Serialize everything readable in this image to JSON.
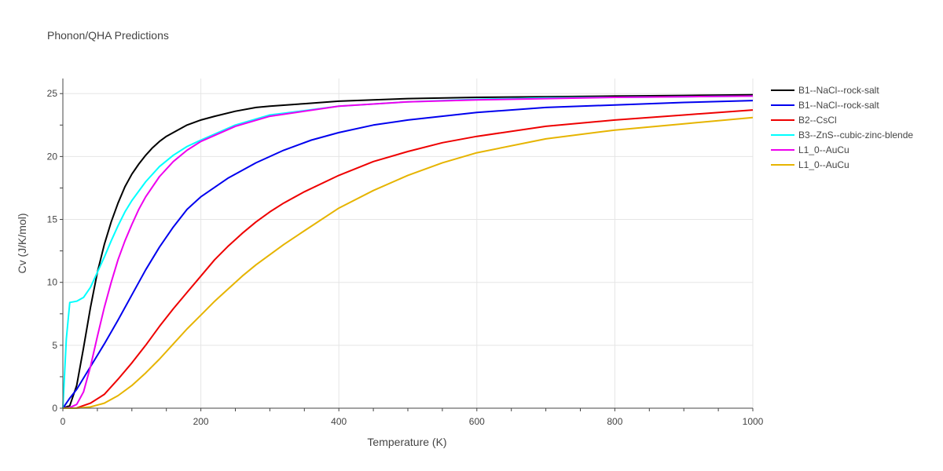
{
  "chart_data": {
    "type": "line",
    "title": "Phonon/QHA Predictions",
    "xlabel": "Temperature (K)",
    "ylabel": "Cv (J/K/mol)",
    "xlim": [
      0,
      1000
    ],
    "ylim": [
      0,
      26.2
    ],
    "xticks": [
      0,
      200,
      400,
      600,
      800,
      1000
    ],
    "yticks": [
      0,
      5,
      10,
      15,
      20,
      25
    ],
    "grid": true,
    "legend_position": "right",
    "series": [
      {
        "name": "B1--NaCl--rock-salt",
        "color": "#000000",
        "x": [
          0,
          10,
          20,
          30,
          40,
          50,
          60,
          70,
          80,
          90,
          100,
          110,
          120,
          130,
          140,
          150,
          160,
          180,
          200,
          220,
          250,
          280,
          300,
          350,
          400,
          500,
          600,
          700,
          800,
          900,
          1000
        ],
        "y": [
          0,
          0.2,
          1.8,
          4.8,
          8.0,
          10.8,
          13.0,
          14.8,
          16.3,
          17.6,
          18.6,
          19.4,
          20.1,
          20.7,
          21.2,
          21.6,
          21.9,
          22.5,
          22.9,
          23.2,
          23.6,
          23.9,
          24.0,
          24.2,
          24.4,
          24.6,
          24.7,
          24.75,
          24.8,
          24.85,
          24.9
        ]
      },
      {
        "name": "B1--NaCl--rock-salt",
        "color": "#0000ee",
        "x": [
          0,
          10,
          20,
          40,
          60,
          80,
          100,
          120,
          140,
          160,
          180,
          200,
          240,
          280,
          320,
          360,
          400,
          450,
          500,
          600,
          700,
          800,
          900,
          1000
        ],
        "y": [
          0,
          0.8,
          1.5,
          3.3,
          5.1,
          7.0,
          9.0,
          11.0,
          12.8,
          14.4,
          15.8,
          16.8,
          18.3,
          19.5,
          20.5,
          21.3,
          21.9,
          22.5,
          22.9,
          23.5,
          23.9,
          24.1,
          24.3,
          24.45
        ]
      },
      {
        "name": "B2--CsCl",
        "color": "#ee0000",
        "x": [
          0,
          20,
          40,
          60,
          80,
          100,
          120,
          140,
          160,
          180,
          200,
          220,
          240,
          260,
          280,
          300,
          320,
          350,
          400,
          450,
          500,
          550,
          600,
          700,
          800,
          900,
          1000
        ],
        "y": [
          0,
          0.02,
          0.4,
          1.1,
          2.3,
          3.6,
          5.0,
          6.5,
          7.9,
          9.2,
          10.5,
          11.8,
          12.9,
          13.9,
          14.8,
          15.6,
          16.3,
          17.2,
          18.5,
          19.6,
          20.4,
          21.1,
          21.6,
          22.4,
          22.9,
          23.3,
          23.7
        ]
      },
      {
        "name": "B3--ZnS--cubic-zinc-blende",
        "color": "#00ffff",
        "x": [
          0,
          5,
          10,
          20,
          30,
          40,
          50,
          60,
          70,
          80,
          90,
          100,
          120,
          140,
          160,
          180,
          200,
          250,
          300,
          400,
          500,
          600,
          700,
          800,
          900,
          1000
        ],
        "y": [
          0,
          5.5,
          8.4,
          8.5,
          8.8,
          9.6,
          10.8,
          12.0,
          13.3,
          14.5,
          15.6,
          16.5,
          18.0,
          19.2,
          20.1,
          20.8,
          21.3,
          22.5,
          23.3,
          24.0,
          24.35,
          24.55,
          24.65,
          24.7,
          24.75,
          24.8
        ]
      },
      {
        "name": "L1_0--AuCu",
        "color": "#ee00ee",
        "x": [
          0,
          10,
          20,
          30,
          40,
          50,
          60,
          70,
          80,
          90,
          100,
          110,
          120,
          140,
          160,
          180,
          200,
          250,
          300,
          400,
          500,
          600,
          700,
          800,
          900,
          1000
        ],
        "y": [
          0,
          0.05,
          0.3,
          1.3,
          3.3,
          5.7,
          8.0,
          10.0,
          11.8,
          13.3,
          14.6,
          15.8,
          16.8,
          18.4,
          19.6,
          20.5,
          21.2,
          22.4,
          23.2,
          24.0,
          24.35,
          24.5,
          24.6,
          24.7,
          24.75,
          24.8
        ]
      },
      {
        "name": "L1_0--AuCu",
        "color": "#e6b400",
        "x": [
          0,
          20,
          40,
          60,
          80,
          100,
          120,
          140,
          160,
          180,
          200,
          220,
          240,
          260,
          280,
          300,
          320,
          350,
          400,
          450,
          500,
          550,
          600,
          700,
          800,
          900,
          1000
        ],
        "y": [
          0,
          0.0,
          0.1,
          0.4,
          1.0,
          1.8,
          2.8,
          3.9,
          5.1,
          6.3,
          7.4,
          8.5,
          9.5,
          10.5,
          11.4,
          12.2,
          13.0,
          14.1,
          15.9,
          17.3,
          18.5,
          19.5,
          20.3,
          21.4,
          22.1,
          22.6,
          23.1
        ]
      }
    ]
  }
}
